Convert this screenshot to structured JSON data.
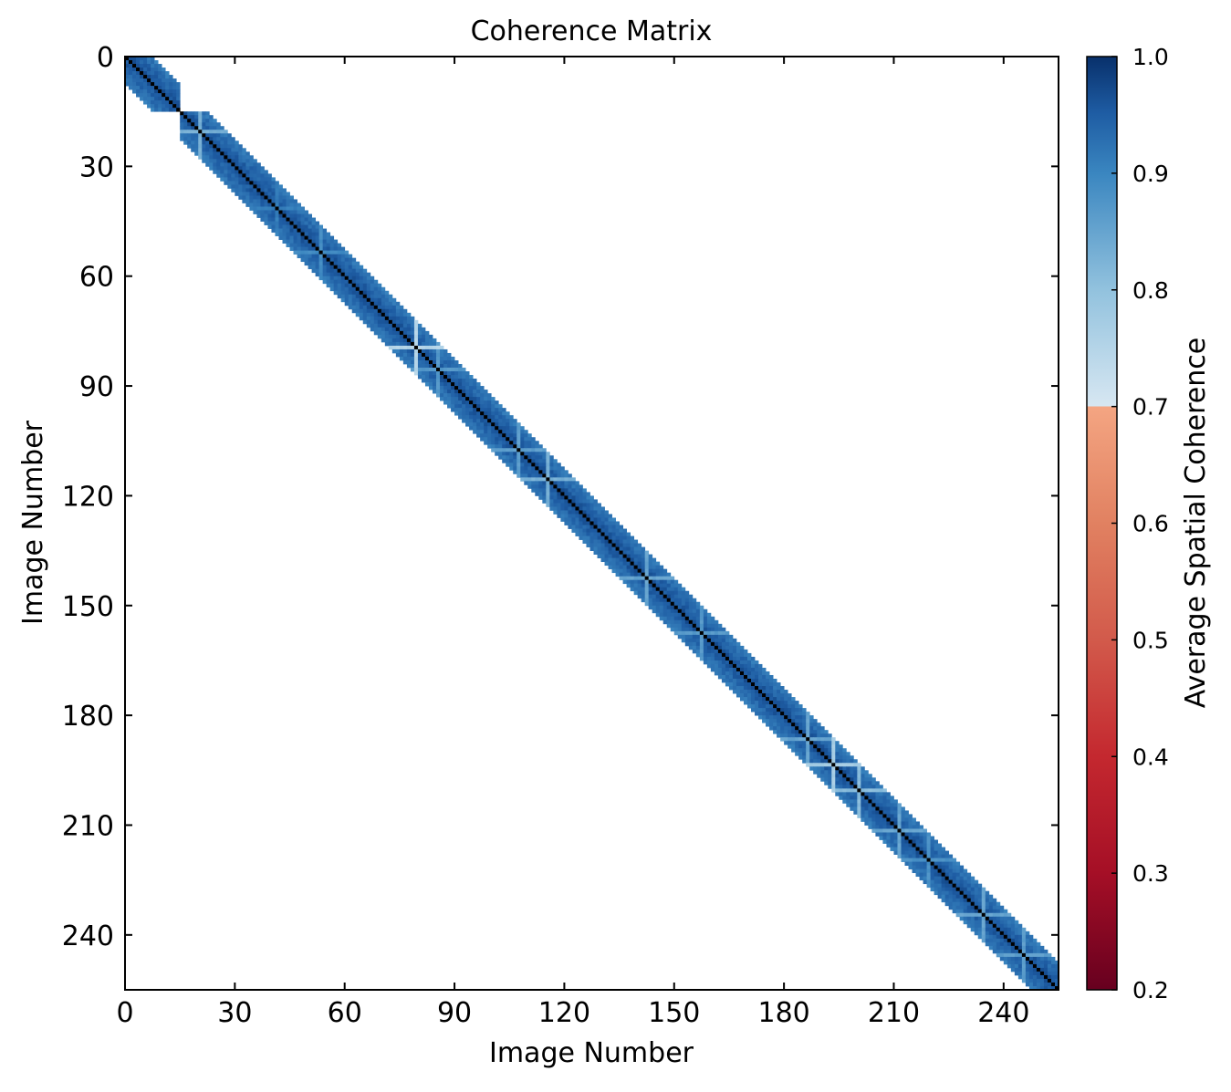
{
  "chart_data": {
    "type": "heatmap",
    "title": "Coherence Matrix",
    "xlabel": "Image Number",
    "ylabel": "Image Number",
    "n_images": 255,
    "xlim": [
      0,
      255
    ],
    "ylim": [
      255,
      0
    ],
    "x_ticks": [
      0,
      30,
      60,
      90,
      120,
      150,
      180,
      210,
      240
    ],
    "y_ticks": [
      0,
      30,
      60,
      90,
      120,
      150,
      180,
      210,
      240
    ],
    "band": {
      "description": "Nonzero coherence only within a diagonal band; blank elsewhere",
      "half_width_images": 7,
      "block_break_after_image": 14,
      "first_block_range": [
        0,
        14
      ],
      "diagonal_value": 1.0,
      "typical_off_diagonal_value": 0.93
    },
    "low_coherence_images": [
      {
        "image": 20,
        "value": 0.82
      },
      {
        "image": 41,
        "value": 0.9
      },
      {
        "image": 53,
        "value": 0.88
      },
      {
        "image": 79,
        "value": 0.74
      },
      {
        "image": 85,
        "value": 0.86
      },
      {
        "image": 107,
        "value": 0.85
      },
      {
        "image": 115,
        "value": 0.82
      },
      {
        "image": 142,
        "value": 0.84
      },
      {
        "image": 157,
        "value": 0.86
      },
      {
        "image": 186,
        "value": 0.84
      },
      {
        "image": 193,
        "value": 0.76
      },
      {
        "image": 200,
        "value": 0.8
      },
      {
        "image": 211,
        "value": 0.84
      },
      {
        "image": 219,
        "value": 0.87
      },
      {
        "image": 234,
        "value": 0.84
      },
      {
        "image": 245,
        "value": 0.85
      }
    ],
    "colorbar": {
      "label": "Average Spatial Coherence",
      "range": [
        0.2,
        1.0
      ],
      "ticks": [
        "0.2",
        "0.3",
        "0.4",
        "0.5",
        "0.6",
        "0.7",
        "0.8",
        "0.9",
        "1.0"
      ],
      "threshold": 0.7,
      "colormap": "RdBu (red below threshold, blue above)"
    },
    "grid": false
  },
  "colors": {
    "diagonal": "#000000",
    "blue_high": "#08306b",
    "blue_mid": "#2171b5",
    "blue_low": "#c6dbef",
    "red_high": "#f4a582",
    "red_low": "#67001f",
    "axes": "#000000",
    "background": "#ffffff"
  }
}
